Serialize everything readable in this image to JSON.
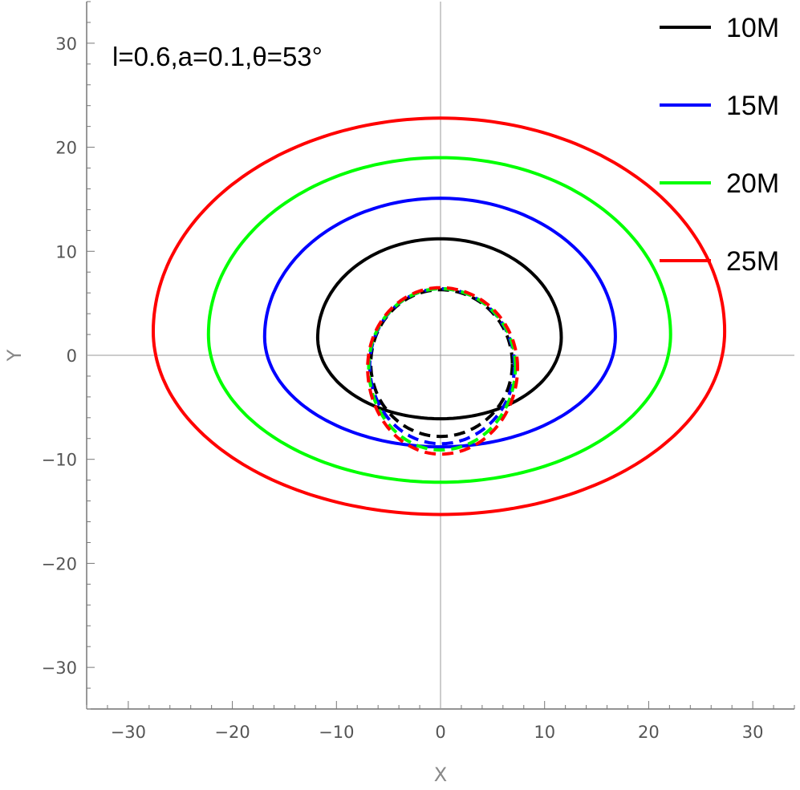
{
  "chart_data": {
    "type": "line",
    "annotation": "l=0.6,a=0.1,θ=53°",
    "xlabel": "X",
    "ylabel": "Y",
    "xlim": [
      -34,
      34
    ],
    "ylim": [
      -34,
      34
    ],
    "xticks": [
      -30,
      -20,
      -10,
      0,
      10,
      20,
      30
    ],
    "yticks": [
      -30,
      -20,
      -10,
      0,
      10,
      20,
      30
    ],
    "tick_labels": {
      "x": [
        "−30",
        "−20",
        "−10",
        "0",
        "10",
        "20",
        "30"
      ],
      "y": [
        "−30",
        "−20",
        "−10",
        "0",
        "10",
        "20",
        "30"
      ]
    },
    "grid": false,
    "zero_axes": true,
    "legend_position": "top-right",
    "legend": [
      {
        "label": "10M",
        "color": "#000000"
      },
      {
        "label": "15M",
        "color": "#0000ff"
      },
      {
        "label": "20M",
        "color": "#00ff00"
      },
      {
        "label": "25M",
        "color": "#ff0000"
      }
    ],
    "series": [
      {
        "style": "solid",
        "color": "#000000",
        "x": [
          0,
          11.6,
          0,
          -11.8,
          0
        ],
        "y": [
          11.2,
          1.7,
          -6.1,
          1.7,
          11.2
        ]
      },
      {
        "style": "solid",
        "color": "#0000ff",
        "x": [
          0,
          16.8,
          0,
          -16.9,
          0
        ],
        "y": [
          15.1,
          1.8,
          -8.8,
          1.8,
          15.1
        ]
      },
      {
        "style": "solid",
        "color": "#00ff00",
        "x": [
          0,
          22.1,
          0,
          -22.3,
          0
        ],
        "y": [
          19.0,
          2.0,
          -12.2,
          2.0,
          19.0
        ]
      },
      {
        "style": "solid",
        "color": "#ff0000",
        "x": [
          0,
          27.3,
          0,
          -27.6,
          0
        ],
        "y": [
          22.8,
          2.3,
          -15.3,
          2.3,
          22.8
        ]
      },
      {
        "style": "dashed",
        "color": "#000000",
        "x": [
          0,
          6.9,
          0,
          -6.7,
          0
        ],
        "y": [
          6.3,
          -0.8,
          -7.8,
          -0.8,
          6.3
        ]
      },
      {
        "style": "dashed",
        "color": "#0000ff",
        "x": [
          0,
          7.1,
          0,
          -6.8,
          0
        ],
        "y": [
          6.4,
          -1.0,
          -8.5,
          -1.0,
          6.4
        ]
      },
      {
        "style": "dashed",
        "color": "#00ff00",
        "x": [
          0,
          7.2,
          0,
          -6.9,
          0
        ],
        "y": [
          6.4,
          -1.1,
          -9.1,
          -1.1,
          6.4
        ]
      },
      {
        "style": "dashed",
        "color": "#ff0000",
        "x": [
          0,
          7.4,
          0,
          -7.0,
          0
        ],
        "y": [
          6.5,
          -1.2,
          -9.5,
          -1.2,
          6.5
        ]
      }
    ]
  }
}
